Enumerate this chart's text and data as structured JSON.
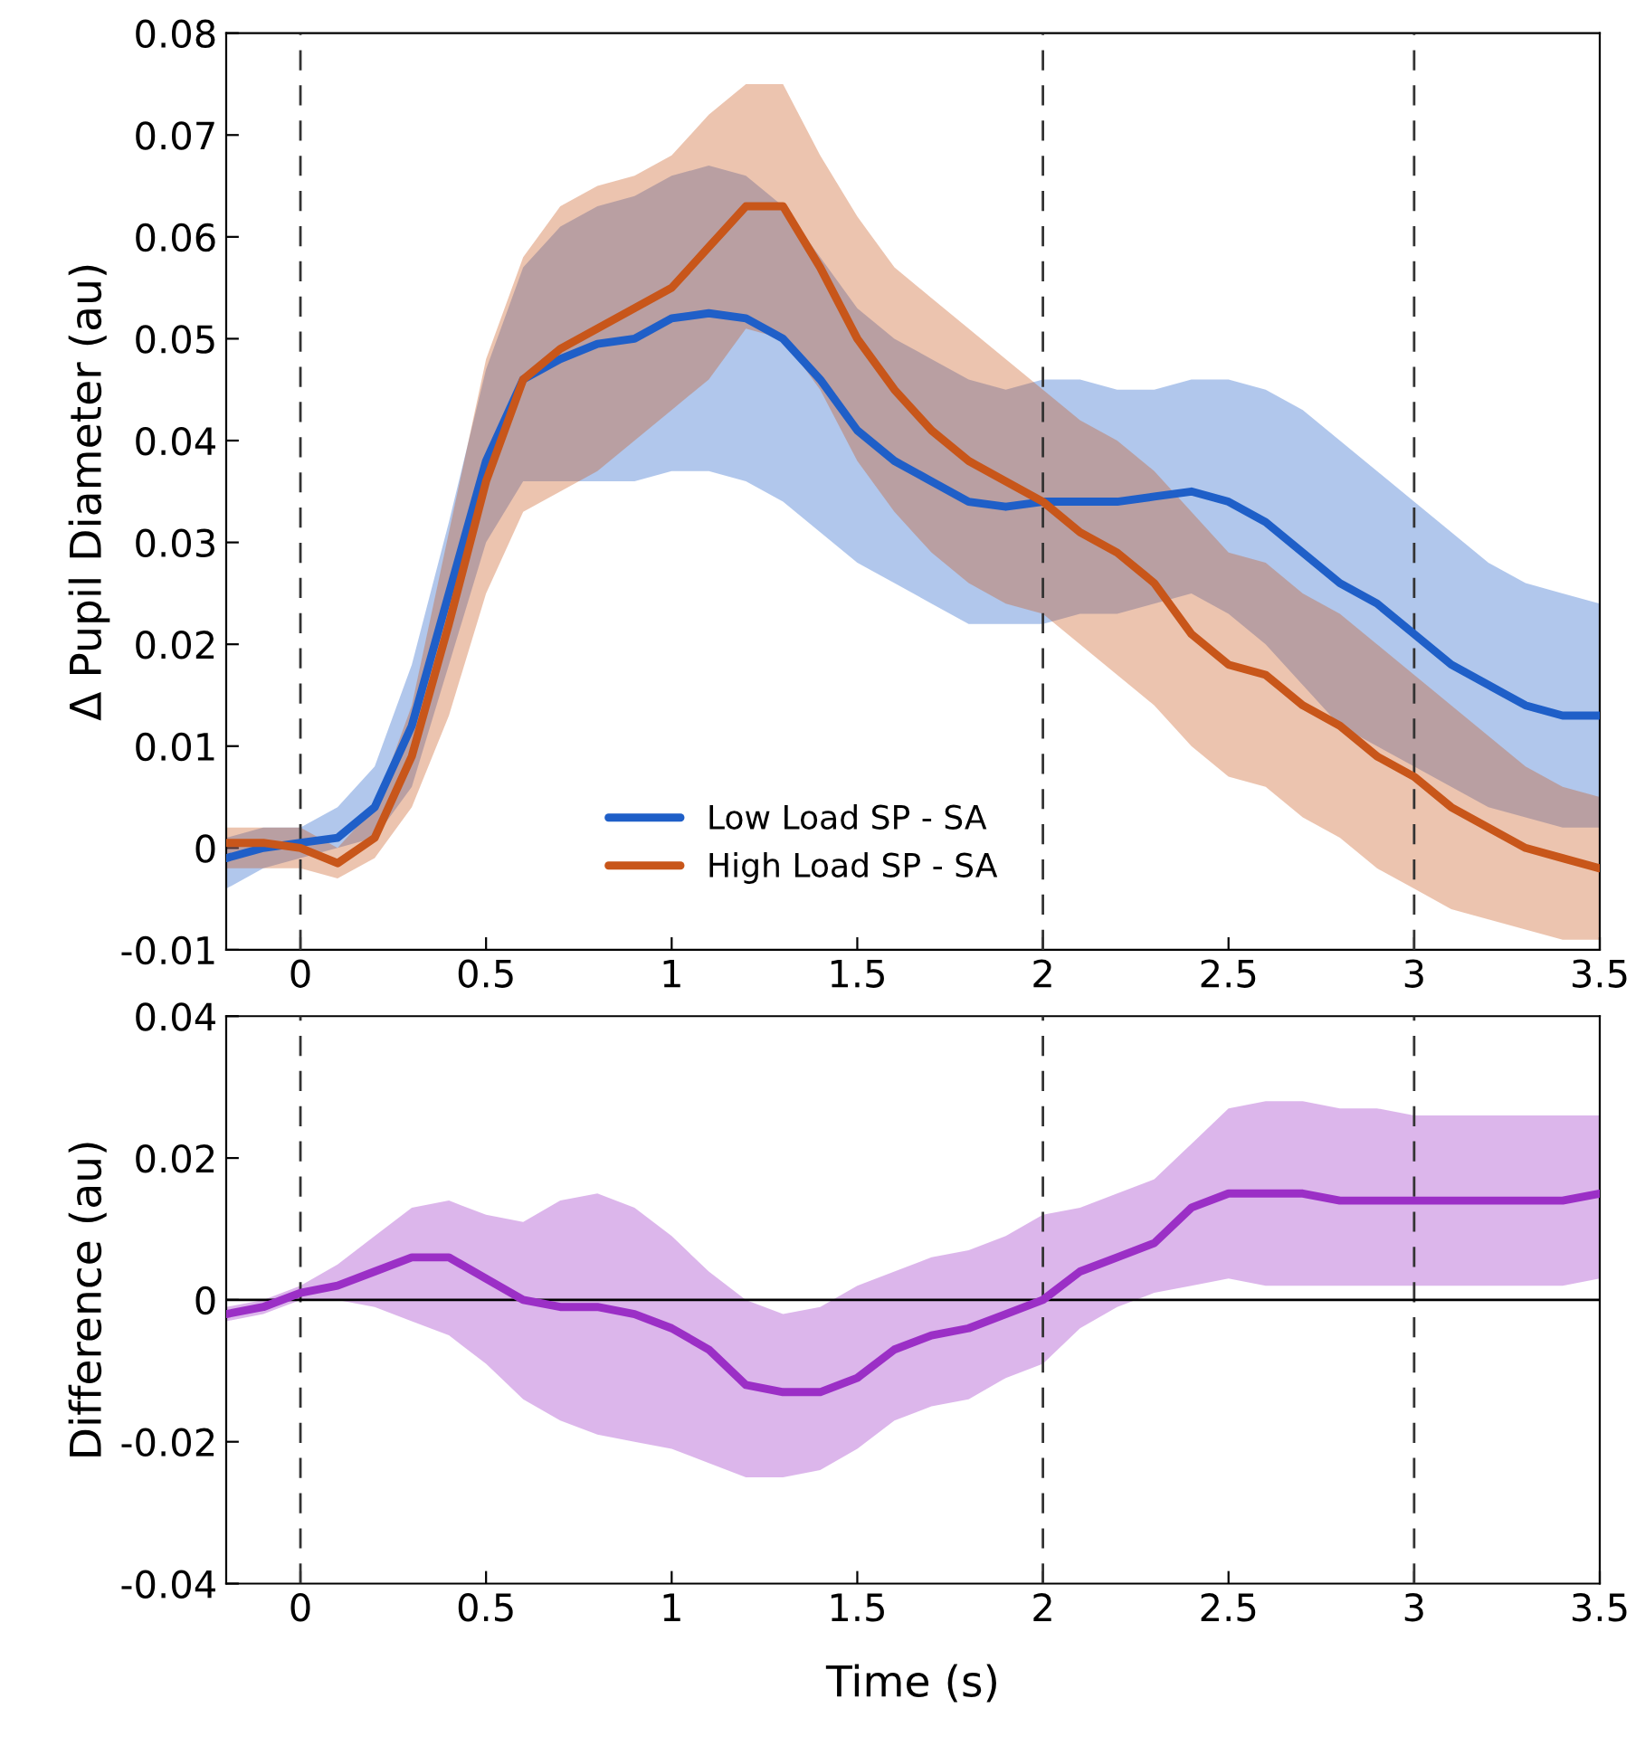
{
  "chart_data": [
    {
      "type": "line",
      "ylabel": "Δ Pupil Diameter (au)",
      "xlim": [
        -0.2,
        3.5
      ],
      "xticks": [
        0,
        0.5,
        1,
        1.5,
        2,
        2.5,
        3,
        3.5
      ],
      "ylim": [
        -0.01,
        0.08
      ],
      "yticks": [
        -0.01,
        0,
        0.01,
        0.02,
        0.03,
        0.04,
        0.05,
        0.06,
        0.07,
        0.08
      ],
      "grid": false,
      "legend": "bottom",
      "x": [
        -0.2,
        -0.1,
        0,
        0.1,
        0.2,
        0.3,
        0.4,
        0.5,
        0.6,
        0.7,
        0.8,
        0.9,
        1.0,
        1.1,
        1.2,
        1.3,
        1.4,
        1.5,
        1.6,
        1.7,
        1.8,
        1.9,
        2.0,
        2.1,
        2.2,
        2.3,
        2.4,
        2.5,
        2.6,
        2.7,
        2.8,
        2.9,
        3.0,
        3.1,
        3.2,
        3.3,
        3.4,
        3.5
      ],
      "ref_lines": [
        {
          "axis": "x",
          "value": 0,
          "line_style": "dashed",
          "color": "#333333"
        },
        {
          "axis": "x",
          "value": 2,
          "line_style": "dashed",
          "color": "#333333"
        },
        {
          "axis": "x",
          "value": 3,
          "line_style": "dashed",
          "color": "#333333"
        }
      ],
      "series": [
        {
          "name": "Low Load SP - SA",
          "color": "#1f5fc8",
          "values": [
            -0.001,
            0.0,
            0.0005,
            0.001,
            0.004,
            0.012,
            0.025,
            0.038,
            0.046,
            0.048,
            0.0495,
            0.05,
            0.052,
            0.0525,
            0.052,
            0.05,
            0.046,
            0.041,
            0.038,
            0.036,
            0.034,
            0.0335,
            0.034,
            0.034,
            0.034,
            0.0345,
            0.035,
            0.034,
            0.032,
            0.029,
            0.026,
            0.024,
            0.021,
            0.018,
            0.016,
            0.014,
            0.013,
            0.013
          ],
          "lower": [
            -0.004,
            -0.002,
            -0.001,
            0.0,
            0.001,
            0.006,
            0.018,
            0.03,
            0.036,
            0.036,
            0.036,
            0.036,
            0.037,
            0.037,
            0.036,
            0.034,
            0.031,
            0.028,
            0.026,
            0.024,
            0.022,
            0.022,
            0.022,
            0.023,
            0.023,
            0.024,
            0.025,
            0.023,
            0.02,
            0.016,
            0.012,
            0.01,
            0.008,
            0.006,
            0.004,
            0.003,
            0.002,
            0.002
          ],
          "upper": [
            0.001,
            0.002,
            0.002,
            0.004,
            0.008,
            0.018,
            0.032,
            0.047,
            0.057,
            0.061,
            0.063,
            0.064,
            0.066,
            0.067,
            0.066,
            0.063,
            0.058,
            0.053,
            0.05,
            0.048,
            0.046,
            0.045,
            0.046,
            0.046,
            0.045,
            0.045,
            0.046,
            0.046,
            0.045,
            0.043,
            0.04,
            0.037,
            0.034,
            0.031,
            0.028,
            0.026,
            0.025,
            0.024
          ]
        },
        {
          "name": "High Load SP - SA",
          "color": "#c8561a",
          "values": [
            0.0005,
            0.0005,
            0.0,
            -0.0015,
            0.001,
            0.009,
            0.022,
            0.036,
            0.046,
            0.049,
            0.051,
            0.053,
            0.055,
            0.059,
            0.063,
            0.063,
            0.057,
            0.05,
            0.045,
            0.041,
            0.038,
            0.036,
            0.034,
            0.031,
            0.029,
            0.026,
            0.021,
            0.018,
            0.017,
            0.014,
            0.012,
            0.009,
            0.007,
            0.004,
            0.002,
            0.0,
            -0.001,
            -0.002
          ],
          "lower": [
            -0.002,
            -0.002,
            -0.002,
            -0.003,
            -0.001,
            0.004,
            0.013,
            0.025,
            0.033,
            0.035,
            0.037,
            0.04,
            0.043,
            0.046,
            0.051,
            0.05,
            0.045,
            0.038,
            0.033,
            0.029,
            0.026,
            0.024,
            0.023,
            0.02,
            0.017,
            0.014,
            0.01,
            0.007,
            0.006,
            0.003,
            0.001,
            -0.002,
            -0.004,
            -0.006,
            -0.007,
            -0.008,
            -0.009,
            -0.009
          ],
          "upper": [
            0.002,
            0.002,
            0.002,
            0.0,
            0.004,
            0.014,
            0.031,
            0.048,
            0.058,
            0.063,
            0.065,
            0.066,
            0.068,
            0.072,
            0.075,
            0.075,
            0.068,
            0.062,
            0.057,
            0.054,
            0.051,
            0.048,
            0.045,
            0.042,
            0.04,
            0.037,
            0.033,
            0.029,
            0.028,
            0.025,
            0.023,
            0.02,
            0.017,
            0.014,
            0.011,
            0.008,
            0.006,
            0.005
          ]
        }
      ]
    },
    {
      "type": "line",
      "xlabel": "Time (s)",
      "ylabel": "Difference (au)",
      "xlim": [
        -0.2,
        3.5
      ],
      "xticks": [
        0,
        0.5,
        1,
        1.5,
        2,
        2.5,
        3,
        3.5
      ],
      "ylim": [
        -0.04,
        0.04
      ],
      "yticks": [
        -0.04,
        -0.02,
        0,
        0.02,
        0.04
      ],
      "grid": false,
      "legend": false,
      "x": [
        -0.2,
        -0.1,
        0,
        0.1,
        0.2,
        0.3,
        0.4,
        0.5,
        0.6,
        0.7,
        0.8,
        0.9,
        1.0,
        1.1,
        1.2,
        1.3,
        1.4,
        1.5,
        1.6,
        1.7,
        1.8,
        1.9,
        2.0,
        2.1,
        2.2,
        2.3,
        2.4,
        2.5,
        2.6,
        2.7,
        2.8,
        2.9,
        3.0,
        3.1,
        3.2,
        3.3,
        3.4,
        3.5
      ],
      "ref_lines": [
        {
          "axis": "x",
          "value": 0,
          "line_style": "dashed",
          "color": "#333333"
        },
        {
          "axis": "x",
          "value": 2,
          "line_style": "dashed",
          "color": "#333333"
        },
        {
          "axis": "x",
          "value": 3,
          "line_style": "dashed",
          "color": "#333333"
        },
        {
          "axis": "y",
          "value": 0,
          "line_style": "solid",
          "color": "#000000"
        }
      ],
      "series": [
        {
          "color": "#9b2fc6",
          "values": [
            -0.002,
            -0.001,
            0.001,
            0.002,
            0.004,
            0.006,
            0.006,
            0.003,
            0.0,
            -0.001,
            -0.001,
            -0.002,
            -0.004,
            -0.007,
            -0.012,
            -0.013,
            -0.013,
            -0.011,
            -0.007,
            -0.005,
            -0.004,
            -0.002,
            0.0,
            0.004,
            0.006,
            0.008,
            0.013,
            0.015,
            0.015,
            0.015,
            0.014,
            0.014,
            0.014,
            0.014,
            0.014,
            0.014,
            0.014,
            0.015
          ],
          "lower": [
            -0.003,
            -0.002,
            0.0,
            0.0,
            -0.001,
            -0.003,
            -0.005,
            -0.009,
            -0.014,
            -0.017,
            -0.019,
            -0.02,
            -0.021,
            -0.023,
            -0.025,
            -0.025,
            -0.024,
            -0.021,
            -0.017,
            -0.015,
            -0.014,
            -0.011,
            -0.009,
            -0.004,
            -0.001,
            0.001,
            0.002,
            0.003,
            0.002,
            0.002,
            0.002,
            0.002,
            0.002,
            0.002,
            0.002,
            0.002,
            0.002,
            0.003
          ],
          "upper": [
            -0.001,
            0.0,
            0.002,
            0.005,
            0.009,
            0.013,
            0.014,
            0.012,
            0.011,
            0.014,
            0.015,
            0.013,
            0.009,
            0.004,
            0.0,
            -0.002,
            -0.001,
            0.002,
            0.004,
            0.006,
            0.007,
            0.009,
            0.012,
            0.013,
            0.015,
            0.017,
            0.022,
            0.027,
            0.028,
            0.028,
            0.027,
            0.027,
            0.026,
            0.026,
            0.026,
            0.026,
            0.026,
            0.026
          ]
        }
      ]
    }
  ]
}
